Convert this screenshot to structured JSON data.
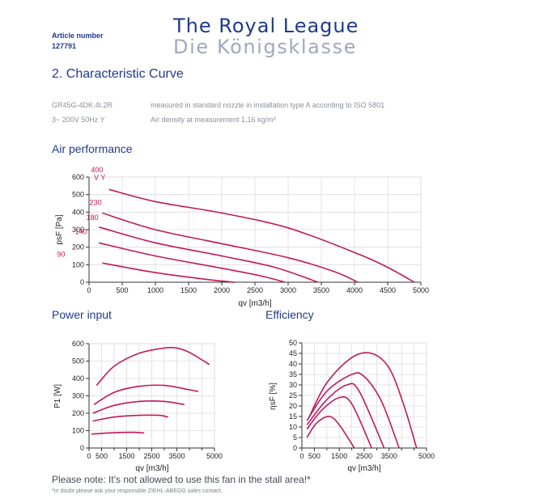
{
  "header": {
    "article_label": "Article number",
    "article_number": "127791",
    "brand_line1": "The Royal League",
    "brand_line2": "Die Königsklasse"
  },
  "section_title": "2.  Characteristic Curve",
  "specs": {
    "model": "GR45G-4DK.4I.2R",
    "voltage": "3~ 200V 50Hz Y",
    "measurement": "measured in standard nozzle in installation type A according to ISO 5801",
    "density": "Air density at measurement 1,16 kg/m³"
  },
  "colors": {
    "curve": "#c2185b",
    "grid": "#dcdcdc",
    "title": "#1f3a8a"
  },
  "notes": {
    "warning": "Please note: It's not allowed to use this fan in the stall area!*",
    "disclaimer": "*In doubt please ask your responsible ZIEHL-ABEGG sales contact."
  },
  "chart_data": [
    {
      "id": "air",
      "type": "line",
      "title": "Air performance",
      "xlabel": "qv [m3/h]",
      "ylabel": "psF [Pa]",
      "xlim": [
        0,
        5000
      ],
      "ylim": [
        0,
        600
      ],
      "xticks": [
        0,
        500,
        1000,
        1500,
        2000,
        2500,
        3000,
        3500,
        4000,
        4500,
        5000
      ],
      "yticks": [
        0,
        100,
        200,
        300,
        400,
        500,
        600
      ],
      "grid": true,
      "annotations": [
        {
          "text": "400",
          "x": 120,
          "y": 628
        },
        {
          "text": "V Y",
          "x": 160,
          "y": 585
        },
        {
          "text": "230",
          "x": 100,
          "y": 440
        },
        {
          "text": "180",
          "x": 50,
          "y": 355
        },
        {
          "text": "140",
          "x": -120,
          "y": 275
        },
        {
          "text": "90",
          "x": -420,
          "y": 145
        }
      ],
      "series": [
        {
          "name": "400",
          "x": [
            300,
            1000,
            2000,
            3000,
            4000,
            4500,
            4900
          ],
          "y": [
            530,
            460,
            395,
            310,
            170,
            85,
            0
          ]
        },
        {
          "name": "230",
          "x": [
            200,
            1000,
            2000,
            3000,
            3700,
            4050
          ],
          "y": [
            395,
            300,
            220,
            140,
            60,
            0
          ]
        },
        {
          "name": "180",
          "x": [
            150,
            1000,
            2000,
            2800,
            3450
          ],
          "y": [
            315,
            225,
            150,
            85,
            0
          ]
        },
        {
          "name": "140",
          "x": [
            150,
            1000,
            2000,
            2600,
            2950
          ],
          "y": [
            225,
            150,
            80,
            35,
            0
          ]
        },
        {
          "name": "90",
          "x": [
            200,
            1000,
            1800,
            2200
          ],
          "y": [
            110,
            55,
            15,
            0
          ]
        }
      ]
    },
    {
      "id": "power",
      "type": "line",
      "title": "Power input",
      "xlabel": "qv [m3/h]",
      "ylabel": "P1 [W]",
      "xlim": [
        0,
        5000
      ],
      "ylim": [
        0,
        600
      ],
      "xticks": [
        0,
        500,
        1500,
        2500,
        3500,
        5000
      ],
      "xticks_minor": [
        1000,
        2000,
        3000,
        4000,
        4500
      ],
      "yticks": [
        0,
        100,
        200,
        300,
        400,
        500,
        600
      ],
      "grid": true,
      "series": [
        {
          "name": "400",
          "x": [
            300,
            1000,
            2000,
            3000,
            3500,
            4000,
            4800
          ],
          "y": [
            360,
            470,
            545,
            575,
            575,
            550,
            480
          ]
        },
        {
          "name": "230",
          "x": [
            200,
            1000,
            2000,
            3000,
            4000,
            4350
          ],
          "y": [
            250,
            320,
            355,
            360,
            335,
            325
          ]
        },
        {
          "name": "180",
          "x": [
            150,
            1000,
            2000,
            3000,
            3800
          ],
          "y": [
            200,
            245,
            268,
            268,
            250
          ]
        },
        {
          "name": "140",
          "x": [
            150,
            1000,
            2000,
            2800,
            3150
          ],
          "y": [
            155,
            178,
            188,
            188,
            178
          ]
        },
        {
          "name": "90",
          "x": [
            100,
            1000,
            1800,
            2200
          ],
          "y": [
            80,
            88,
            90,
            86
          ]
        }
      ]
    },
    {
      "id": "efficiency",
      "type": "line",
      "title": "Efficiency",
      "xlabel": "qv [m3/h]",
      "ylabel": "ηsF [%]",
      "xlim": [
        0,
        5000
      ],
      "ylim": [
        0,
        50
      ],
      "xticks": [
        0,
        500,
        1500,
        2500,
        3500,
        5000
      ],
      "xticks_minor": [
        1000,
        2000,
        3000,
        4000,
        4500
      ],
      "yticks": [
        0,
        5,
        10,
        15,
        20,
        25,
        30,
        35,
        40,
        45,
        50
      ],
      "grid": true,
      "series": [
        {
          "name": "400",
          "x": [
            300,
            1000,
            2000,
            2800,
            3500,
            4100,
            4600
          ],
          "y": [
            15,
            31,
            43,
            45,
            38,
            20,
            0
          ]
        },
        {
          "name": "230",
          "x": [
            200,
            1000,
            2000,
            2500,
            3200,
            3900
          ],
          "y": [
            13,
            27,
            35,
            34,
            22,
            0
          ]
        },
        {
          "name": "180",
          "x": [
            200,
            1000,
            1800,
            2300,
            3300
          ],
          "y": [
            11,
            23,
            30,
            27,
            0
          ]
        },
        {
          "name": "140",
          "x": [
            200,
            800,
            1500,
            2000,
            2800
          ],
          "y": [
            9,
            18,
            24,
            21,
            0
          ]
        },
        {
          "name": "90",
          "x": [
            200,
            600,
            1100,
            1500,
            2100
          ],
          "y": [
            5,
            12,
            15,
            11,
            0
          ]
        }
      ]
    }
  ]
}
